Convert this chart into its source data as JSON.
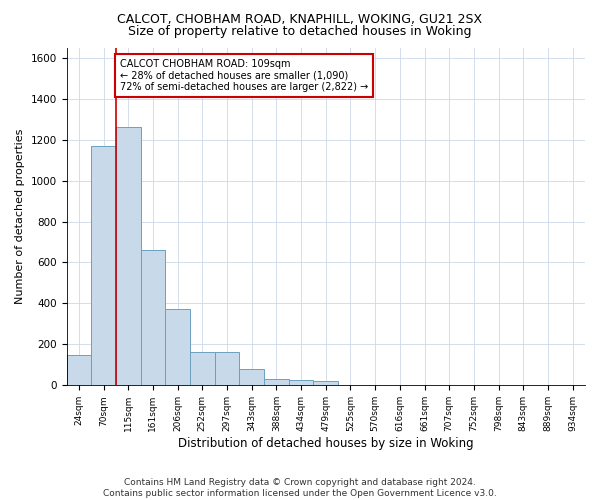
{
  "title1": "CALCOT, CHOBHAM ROAD, KNAPHILL, WOKING, GU21 2SX",
  "title2": "Size of property relative to detached houses in Woking",
  "xlabel": "Distribution of detached houses by size in Woking",
  "ylabel": "Number of detached properties",
  "categories": [
    "24sqm",
    "70sqm",
    "115sqm",
    "161sqm",
    "206sqm",
    "252sqm",
    "297sqm",
    "343sqm",
    "388sqm",
    "434sqm",
    "479sqm",
    "525sqm",
    "570sqm",
    "616sqm",
    "661sqm",
    "707sqm",
    "752sqm",
    "798sqm",
    "843sqm",
    "889sqm",
    "934sqm"
  ],
  "values": [
    150,
    1170,
    1260,
    660,
    375,
    165,
    165,
    80,
    30,
    25,
    20,
    0,
    0,
    0,
    0,
    0,
    0,
    0,
    0,
    0,
    0
  ],
  "bar_color": "#c8d9ea",
  "bar_edge_color": "#6aa0c0",
  "vline_x": 1.5,
  "vline_color": "#cc0000",
  "annotation_text": "CALCOT CHOBHAM ROAD: 109sqm\n← 28% of detached houses are smaller (1,090)\n72% of semi-detached houses are larger (2,822) →",
  "annotation_box_color": "#ffffff",
  "annotation_box_edge_color": "#cc0000",
  "ylim": [
    0,
    1650
  ],
  "yticks": [
    0,
    200,
    400,
    600,
    800,
    1000,
    1200,
    1400,
    1600
  ],
  "footer": "Contains HM Land Registry data © Crown copyright and database right 2024.\nContains public sector information licensed under the Open Government Licence v3.0.",
  "bg_color": "#ffffff",
  "grid_color": "#cdd8e8",
  "title1_fontsize": 9,
  "title2_fontsize": 9,
  "annot_fontsize": 7,
  "footer_fontsize": 6.5,
  "ylabel_fontsize": 8,
  "xlabel_fontsize": 8.5
}
